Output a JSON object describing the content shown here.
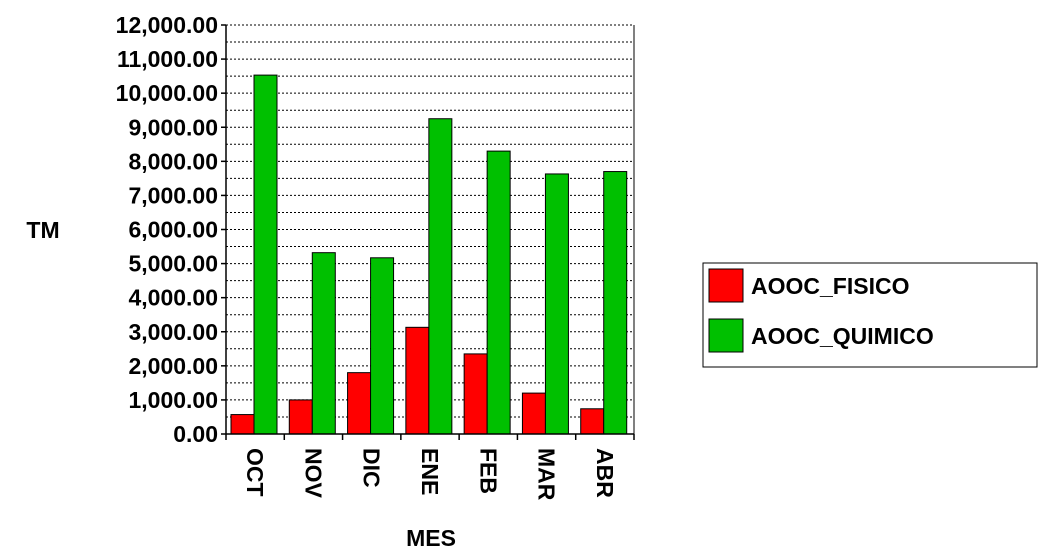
{
  "chart_data": {
    "type": "bar",
    "title": "",
    "xlabel": "MES",
    "ylabel": "TM",
    "ylim": [
      0,
      12000
    ],
    "y_major_step": 1000,
    "y_minor_step": 500,
    "grid": true,
    "legend_position": "right",
    "categories": [
      "OCT",
      "NOV",
      "DIC",
      "ENE",
      "FEB",
      "MAR",
      "ABR"
    ],
    "y_ticks": [
      "0.00",
      "1,000.00",
      "2,000.00",
      "3,000.00",
      "4,000.00",
      "5,000.00",
      "6,000.00",
      "7,000.00",
      "8,000.00",
      "9,000.00",
      "10,000.00",
      "11,000.00",
      "12,000.00"
    ],
    "series": [
      {
        "name": "AOOC_FISICO",
        "color": "#ff0000",
        "values": [
          570,
          1000,
          1800,
          3130,
          2350,
          1200,
          740
        ]
      },
      {
        "name": "AOOC_QUIMICO",
        "color": "#00c000",
        "values": [
          10530,
          5320,
          5170,
          9250,
          8300,
          7630,
          7700
        ]
      }
    ]
  }
}
